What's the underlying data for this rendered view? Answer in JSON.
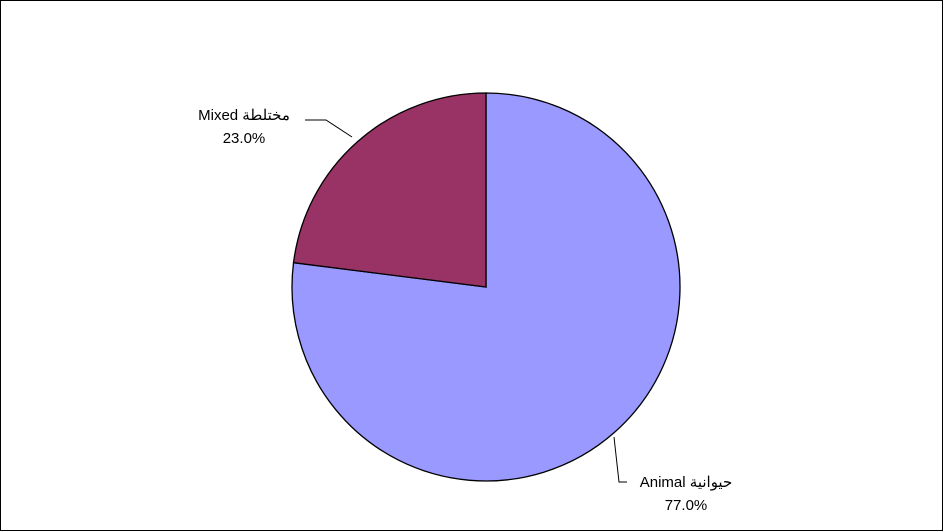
{
  "chart_data": {
    "type": "pie",
    "title": "",
    "slices": [
      {
        "label": "حيوانية Animal",
        "value": 77.0,
        "percent_label": "77.0%",
        "color": "#9999ff"
      },
      {
        "label": "مختلطة Mixed",
        "value": 23.0,
        "percent_label": "23.0%",
        "color": "#993366"
      }
    ],
    "start_angle_deg": 0,
    "direction": "clockwise",
    "legend": "none",
    "border_color": "#000000"
  }
}
